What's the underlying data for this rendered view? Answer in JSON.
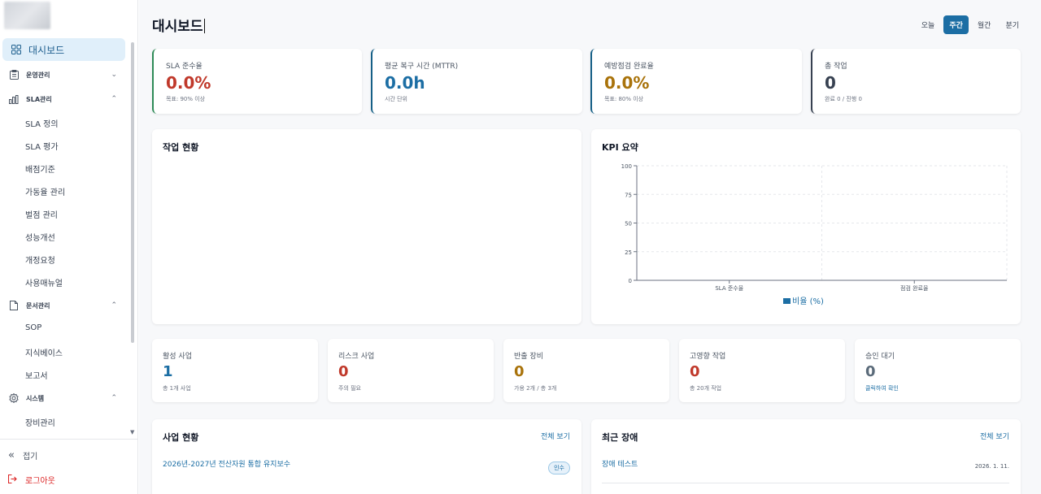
{
  "sidebar": {
    "active": {
      "label": "대시보드",
      "icon": "grid-icon"
    },
    "groups": [
      {
        "label": "운영관리",
        "icon": "clipboard-icon",
        "expanded": false
      },
      {
        "label": "SLA관리",
        "icon": "bar-chart-icon",
        "expanded": true,
        "items": [
          "SLA 정의",
          "SLA 평가",
          "배점기준",
          "가동율 관리",
          "벌점 관리",
          "성능개선",
          "개정요청",
          "사용매뉴얼"
        ]
      },
      {
        "label": "문서관리",
        "icon": "document-icon",
        "expanded": true,
        "items": [
          "SOP",
          "지식베이스",
          "보고서"
        ]
      },
      {
        "label": "시스템",
        "icon": "gear-icon",
        "expanded": true,
        "items": [
          "장비관리"
        ]
      }
    ],
    "collapse_label": "접기",
    "logout_label": "로그아웃"
  },
  "header": {
    "title": "대시보드",
    "periods": [
      "오늘",
      "주간",
      "월간",
      "분기"
    ],
    "selected_period": "주간"
  },
  "kpis": [
    {
      "label": "SLA 준수율",
      "value": "0.0%",
      "sub": "목표: 90% 이상",
      "color": "#c0392b"
    },
    {
      "label": "평균 복구 시간 (MTTR)",
      "value": "0.0h",
      "sub": "시간 단위",
      "color": "#1c6ea4"
    },
    {
      "label": "예방점검 완료율",
      "value": "0.0%",
      "sub": "목표: 80% 이상",
      "color": "#a9730b"
    },
    {
      "label": "총 작업",
      "value": "0",
      "sub": "완료 0 / 진행 0",
      "color": "#374151"
    }
  ],
  "work_status": {
    "title": "작업 현황"
  },
  "kpi_summary": {
    "title": "KPI 요약",
    "chart_data": {
      "type": "bar",
      "categories": [
        "SLA 준수율",
        "점검 완료율"
      ],
      "series": [
        {
          "name": "비율 (%)",
          "values": [
            0,
            0
          ],
          "color": "#1c6ea4"
        }
      ],
      "ylim": [
        0,
        100
      ],
      "yticks": [
        "0",
        "25",
        "50",
        "75",
        "100"
      ],
      "grid": true,
      "legend": "bottom"
    }
  },
  "stats": [
    {
      "label": "활성 사업",
      "value": "1",
      "sub": "총 1개 사업",
      "color": "#1c6ea4"
    },
    {
      "label": "리스크 사업",
      "value": "0",
      "sub": "주의 필요",
      "color": "#c0392b"
    },
    {
      "label": "반출 장비",
      "value": "0",
      "sub": "가용 2개 / 총 3개",
      "color": "#a9730b"
    },
    {
      "label": "고영향 작업",
      "value": "0",
      "sub": "총 20개 작업",
      "color": "#c0392b"
    },
    {
      "label": "승인 대기",
      "value": "0",
      "sub": "클릭하여 확인",
      "color": "#5b6b7a"
    }
  ],
  "projects": {
    "title": "사업 현황",
    "view_all": "전체 보기",
    "items": [
      {
        "name": "2026년-2027년 전산자원 통합 유지보수",
        "badge": "인수"
      }
    ]
  },
  "incidents": {
    "title": "최근 장애",
    "view_all": "전체 보기",
    "items": [
      {
        "name": "장애 테스트",
        "date": "2026. 1. 11."
      }
    ]
  }
}
